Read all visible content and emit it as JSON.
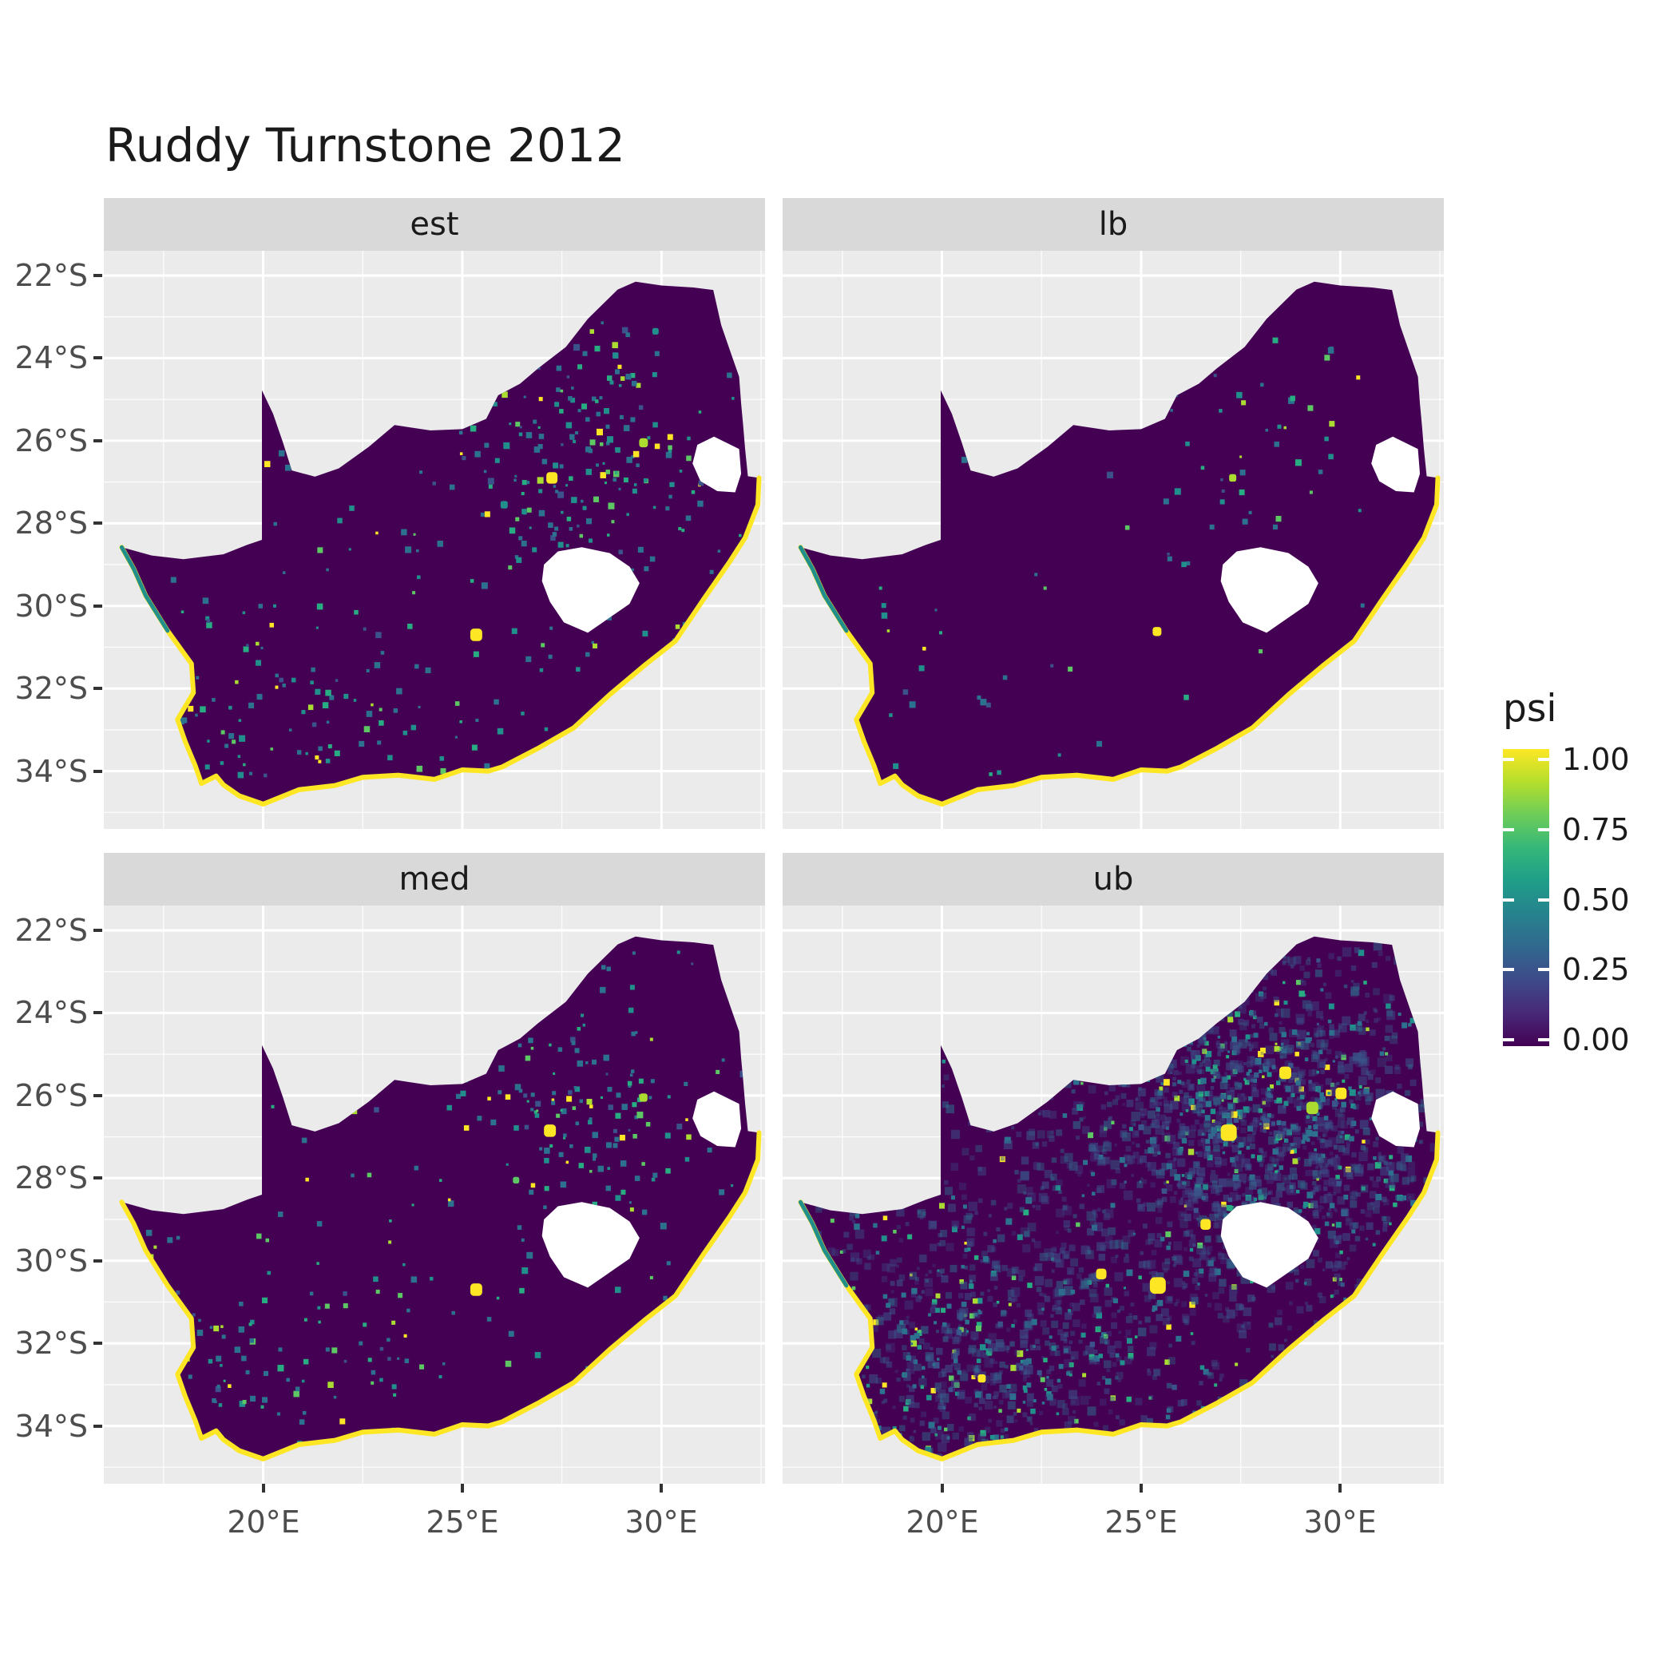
{
  "chart_data": {
    "type": "heatmap",
    "title": "Ruddy Turnstone 2012",
    "description": "Faceted raster maps of South Africa showing occupancy probability (psi) per grid cell, viridis colour scale. Most inland cells are near 0 (dark purple); the coastline is near 1 (yellow); scattered mid/high-value cells inland. The 'ub' facet shows much denser elevated speckling than 'est', 'med' and especially 'lb'.",
    "facets": [
      {
        "label": "est",
        "seed": 1,
        "speckles": 430,
        "faint_speckles": 0,
        "nw_teal": true,
        "hotspots": [
          [
            25.35,
            30.7,
            0.3,
            0
          ],
          [
            27.25,
            26.9,
            0.28,
            0
          ],
          [
            29.55,
            26.05,
            0.22,
            1
          ],
          [
            29.85,
            23.35,
            0.16,
            3
          ],
          [
            26.05,
            27.55,
            0.18,
            3
          ]
        ]
      },
      {
        "label": "lb",
        "seed": 2,
        "speckles": 100,
        "faint_speckles": 0,
        "nw_teal": true,
        "hotspots": [
          [
            25.4,
            30.62,
            0.22,
            0
          ],
          [
            27.3,
            26.9,
            0.18,
            1
          ]
        ]
      },
      {
        "label": "med",
        "seed": 3,
        "speckles": 360,
        "faint_speckles": 0,
        "nw_teal": false,
        "hotspots": [
          [
            25.35,
            30.7,
            0.3,
            0
          ],
          [
            27.2,
            26.85,
            0.3,
            0
          ],
          [
            29.55,
            26.05,
            0.2,
            1
          ],
          [
            26.35,
            28.05,
            0.16,
            2
          ]
        ]
      },
      {
        "label": "ub",
        "seed": 4,
        "speckles": 760,
        "faint_speckles": 2400,
        "nw_teal": true,
        "hotspots": [
          [
            25.42,
            30.6,
            0.4,
            0
          ],
          [
            27.2,
            26.9,
            0.4,
            0
          ],
          [
            24.0,
            30.32,
            0.26,
            0
          ],
          [
            28.62,
            25.45,
            0.3,
            0
          ],
          [
            30.02,
            25.95,
            0.28,
            0
          ],
          [
            26.62,
            29.12,
            0.26,
            0
          ],
          [
            21.0,
            32.85,
            0.2,
            0
          ],
          [
            29.3,
            26.3,
            0.3,
            1
          ]
        ]
      }
    ],
    "x_axis": {
      "ticks": [
        {
          "label": "20°E",
          "lon": 20
        },
        {
          "label": "25°E",
          "lon": 25
        },
        {
          "label": "30°E",
          "lon": 30
        }
      ]
    },
    "y_axis": {
      "ticks": [
        {
          "label": "22°S",
          "lat": 22
        },
        {
          "label": "24°S",
          "lat": 24
        },
        {
          "label": "26°S",
          "lat": 26
        },
        {
          "label": "28°S",
          "lat": 28
        },
        {
          "label": "30°S",
          "lat": 30
        },
        {
          "label": "32°S",
          "lat": 32
        },
        {
          "label": "34°S",
          "lat": 34
        }
      ]
    },
    "legend": {
      "title": "psi",
      "ticks": [
        {
          "label": "1.00",
          "value": 1
        },
        {
          "label": "0.75",
          "value": 0.75
        },
        {
          "label": "0.50",
          "value": 0.5
        },
        {
          "label": "0.25",
          "value": 0.25
        },
        {
          "label": "0.00",
          "value": 0
        }
      ]
    },
    "viridis_stops": [
      "#440154",
      "#482878",
      "#3E4A89",
      "#31688E",
      "#26828E",
      "#1F9E89",
      "#35B779",
      "#6DCD59",
      "#B4DE2C",
      "#FDE725"
    ],
    "colors": {
      "map_fill": "#440154",
      "coast_high": "#FDE725",
      "accent_teal": "#21908C",
      "panel_bg": "#EBEBEB",
      "strip_bg": "#D9D9D9",
      "grid": "#FFFFFF",
      "axis_text": "#4D4D4D",
      "tick_mark": "#333333",
      "hole_fill": "#FFFFFF"
    }
  }
}
